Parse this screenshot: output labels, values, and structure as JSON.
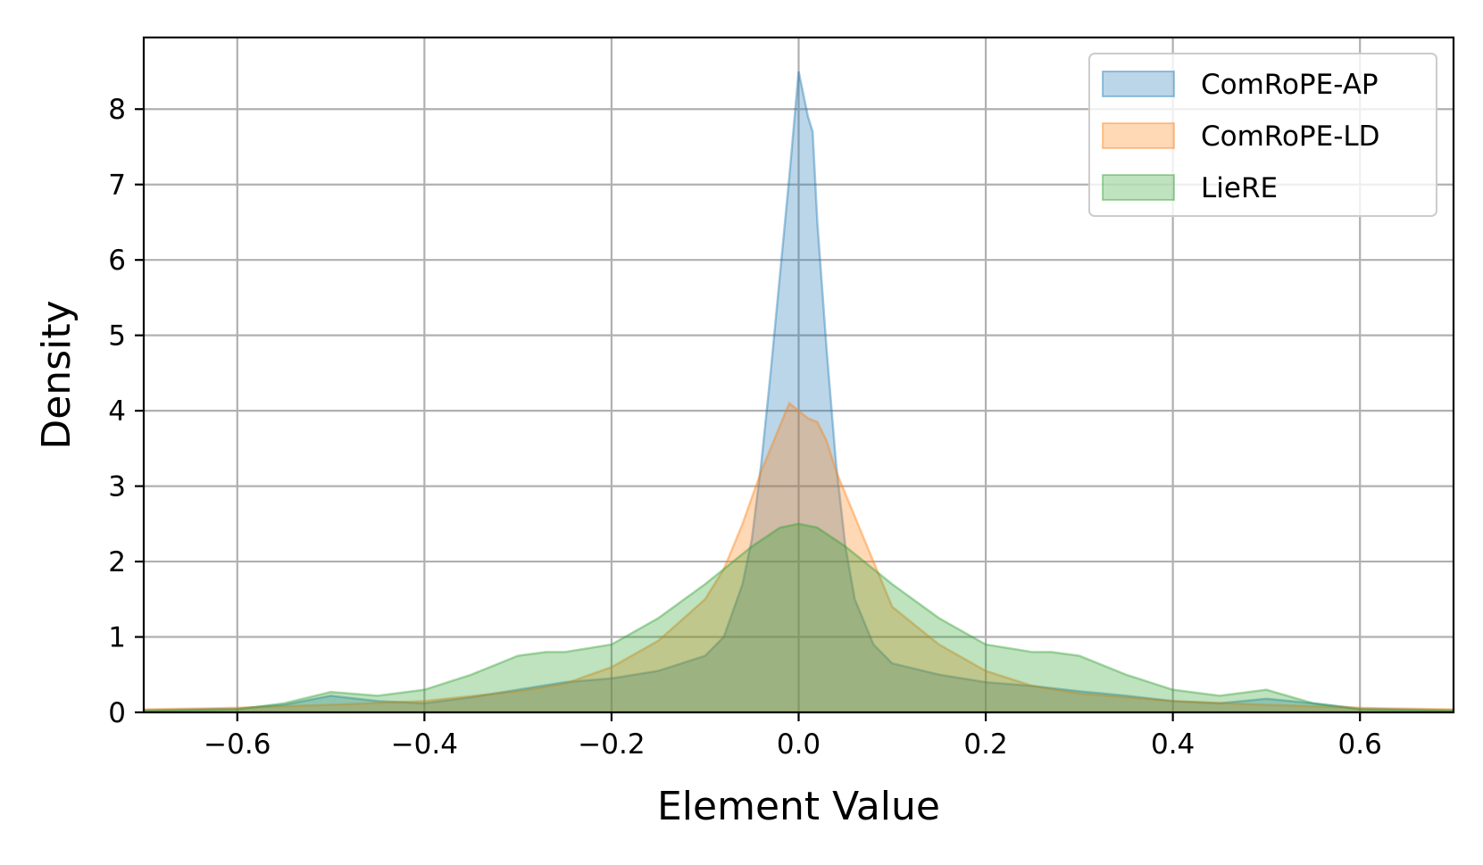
{
  "chart_data": {
    "type": "area",
    "title": "",
    "xlabel": "Element Value",
    "ylabel": "Density",
    "xlim": [
      -0.7,
      0.7
    ],
    "ylim": [
      0,
      8.95
    ],
    "xticks": [
      -0.6,
      -0.4,
      -0.2,
      0.0,
      0.2,
      0.4,
      0.6
    ],
    "xtick_labels": [
      "−0.6",
      "−0.4",
      "−0.2",
      "0.0",
      "0.2",
      "0.4",
      "0.6"
    ],
    "yticks": [
      0,
      1,
      2,
      3,
      4,
      5,
      6,
      7,
      8
    ],
    "ytick_labels": [
      "0",
      "1",
      "2",
      "3",
      "4",
      "5",
      "6",
      "7",
      "8"
    ],
    "grid": true,
    "legend_position": "top-right",
    "series": [
      {
        "name": "ComRoPE-AP",
        "color": "#1f77b4",
        "x": [
          -0.7,
          -0.6,
          -0.55,
          -0.5,
          -0.45,
          -0.4,
          -0.35,
          -0.3,
          -0.25,
          -0.2,
          -0.15,
          -0.1,
          -0.08,
          -0.06,
          -0.05,
          -0.04,
          -0.03,
          -0.02,
          -0.01,
          0.0,
          0.01,
          0.015,
          0.02,
          0.03,
          0.04,
          0.05,
          0.06,
          0.08,
          0.1,
          0.15,
          0.2,
          0.25,
          0.3,
          0.35,
          0.4,
          0.45,
          0.5,
          0.55,
          0.6,
          0.7
        ],
        "y": [
          0.03,
          0.05,
          0.1,
          0.22,
          0.15,
          0.12,
          0.2,
          0.3,
          0.4,
          0.45,
          0.55,
          0.75,
          1.0,
          1.7,
          2.3,
          3.3,
          4.5,
          5.8,
          7.1,
          8.5,
          7.9,
          7.7,
          6.5,
          4.8,
          3.3,
          2.2,
          1.5,
          0.9,
          0.65,
          0.5,
          0.4,
          0.35,
          0.28,
          0.22,
          0.15,
          0.12,
          0.18,
          0.12,
          0.05,
          0.03
        ]
      },
      {
        "name": "ComRoPE-LD",
        "color": "#ff7f0e",
        "x": [
          -0.7,
          -0.6,
          -0.5,
          -0.4,
          -0.3,
          -0.25,
          -0.2,
          -0.15,
          -0.1,
          -0.08,
          -0.06,
          -0.04,
          -0.02,
          -0.01,
          0.0,
          0.01,
          0.02,
          0.03,
          0.04,
          0.06,
          0.08,
          0.1,
          0.15,
          0.2,
          0.25,
          0.3,
          0.4,
          0.5,
          0.6,
          0.7
        ],
        "y": [
          0.04,
          0.06,
          0.1,
          0.15,
          0.28,
          0.38,
          0.6,
          0.95,
          1.5,
          1.9,
          2.5,
          3.2,
          3.8,
          4.1,
          4.0,
          3.9,
          3.85,
          3.6,
          3.2,
          2.6,
          2.0,
          1.4,
          0.9,
          0.55,
          0.35,
          0.25,
          0.15,
          0.1,
          0.06,
          0.04
        ]
      },
      {
        "name": "LieRE",
        "color": "#2ca02c",
        "x": [
          -0.7,
          -0.6,
          -0.55,
          -0.5,
          -0.45,
          -0.4,
          -0.35,
          -0.3,
          -0.27,
          -0.25,
          -0.2,
          -0.15,
          -0.1,
          -0.05,
          -0.02,
          0.0,
          0.02,
          0.05,
          0.1,
          0.15,
          0.2,
          0.25,
          0.27,
          0.3,
          0.35,
          0.4,
          0.45,
          0.5,
          0.55,
          0.6,
          0.7
        ],
        "y": [
          0.02,
          0.04,
          0.12,
          0.27,
          0.22,
          0.3,
          0.5,
          0.75,
          0.8,
          0.8,
          0.9,
          1.25,
          1.7,
          2.2,
          2.45,
          2.5,
          2.45,
          2.2,
          1.7,
          1.25,
          0.9,
          0.8,
          0.8,
          0.75,
          0.5,
          0.3,
          0.22,
          0.3,
          0.12,
          0.04,
          0.02
        ]
      }
    ]
  }
}
